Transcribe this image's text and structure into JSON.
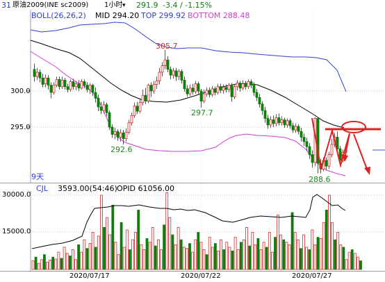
{
  "header": {
    "tab_number": "31",
    "instrument": "原油2009(INE sc2009)",
    "period": "1小时",
    "period_arrow": "▾",
    "last_price": "291.9",
    "change": "-3.4 / -1.15%"
  },
  "boll": {
    "label": "BOLL(26,26,2)",
    "mid_label": "MID 294.20",
    "top_label": "TOP 299.92",
    "bottom_label": "BOTTOM 288.48",
    "colors": {
      "mid": "#000000",
      "top": "#2f3fd0",
      "bottom": "#d43bd4",
      "label": "#2f3fd0"
    }
  },
  "price_axis": [
    "300.0",
    "295.0"
  ],
  "price_annotations": [
    "305.7",
    "297.7",
    "292.6",
    "288.6"
  ],
  "lower_left_label": "9天",
  "volume": {
    "indicator": "CJL",
    "volume_info": "3593.00(54:46)",
    "opi_info": "OPID 61056.00",
    "axis": [
      "30000.0",
      "15000.0"
    ]
  },
  "dates": [
    "2020/07/17",
    "2020/07/22",
    "2020/07/27"
  ],
  "colors": {
    "up": "#d42a2a",
    "down": "#0e7d0e",
    "annotation_red": "#d42a2a",
    "annotation_green": "#1a8a1a",
    "drawing": "#e02020"
  }
}
